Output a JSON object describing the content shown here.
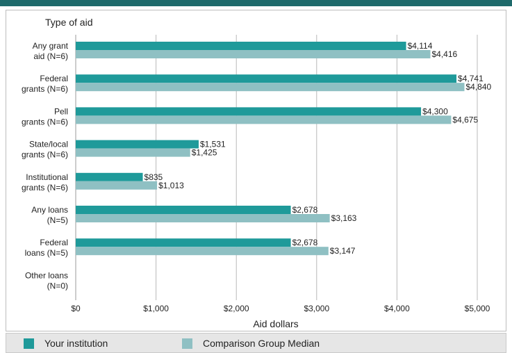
{
  "colors": {
    "topbar": "#1e6a6b",
    "your_institution": "#1f9a9a",
    "comparison_median": "#8fc0c3",
    "gridline": "#b8b8b8"
  },
  "legend": {
    "your_institution": "Your institution",
    "comparison_median": "Comparison Group Median"
  },
  "chart_data": {
    "type": "bar",
    "orientation": "horizontal",
    "title": "",
    "ylabel": "Type of aid",
    "xlabel": "Aid dollars",
    "xlim": [
      0,
      5000
    ],
    "xticks": [
      {
        "value": 0,
        "label": "$0"
      },
      {
        "value": 1000,
        "label": "$1,000"
      },
      {
        "value": 2000,
        "label": "$2,000"
      },
      {
        "value": 3000,
        "label": "$3,000"
      },
      {
        "value": 4000,
        "label": "$4,000"
      },
      {
        "value": 5000,
        "label": "$5,000"
      }
    ],
    "grid": true,
    "legend_position": "bottom",
    "categories": [
      [
        "Any grant",
        "aid (N=6)"
      ],
      [
        "Federal",
        "grants (N=6)"
      ],
      [
        "Pell",
        "grants (N=6)"
      ],
      [
        "State/local",
        "grants (N=6)"
      ],
      [
        "Institutional",
        "grants (N=6)"
      ],
      [
        "Any loans",
        "(N=5)"
      ],
      [
        "Federal",
        "loans (N=5)"
      ],
      [
        "Other loans",
        "(N=0)"
      ]
    ],
    "series": [
      {
        "name": "Your institution",
        "values": [
          4114,
          4741,
          4300,
          1531,
          835,
          2678,
          2678,
          null
        ],
        "labels": [
          "$4,114",
          "$4,741",
          "$4,300",
          "$1,531",
          "$835",
          "$2,678",
          "$2,678",
          ""
        ]
      },
      {
        "name": "Comparison Group Median",
        "values": [
          4416,
          4840,
          4675,
          1425,
          1013,
          3163,
          3147,
          null
        ],
        "labels": [
          "$4,416",
          "$4,840",
          "$4,675",
          "$1,425",
          "$1,013",
          "$3,163",
          "$3,147",
          ""
        ]
      }
    ]
  }
}
